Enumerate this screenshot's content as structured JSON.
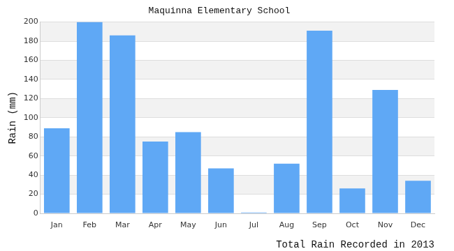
{
  "chart_data": {
    "type": "bar",
    "title": "Maquinna Elementary School",
    "ylabel": "Rain (mm)",
    "xlabel": "Total Rain Recorded in 2013",
    "categories": [
      "Jan",
      "Feb",
      "Mar",
      "Apr",
      "May",
      "Jun",
      "Jul",
      "Aug",
      "Sep",
      "Oct",
      "Nov",
      "Dec"
    ],
    "values": [
      89,
      200,
      186,
      75,
      85,
      47,
      1,
      52,
      191,
      26,
      129,
      34
    ],
    "color": "#5fa8f5",
    "ylim": [
      0,
      200
    ],
    "yticks": [
      0,
      20,
      40,
      60,
      80,
      100,
      120,
      140,
      160,
      180,
      200
    ],
    "grid": true
  }
}
